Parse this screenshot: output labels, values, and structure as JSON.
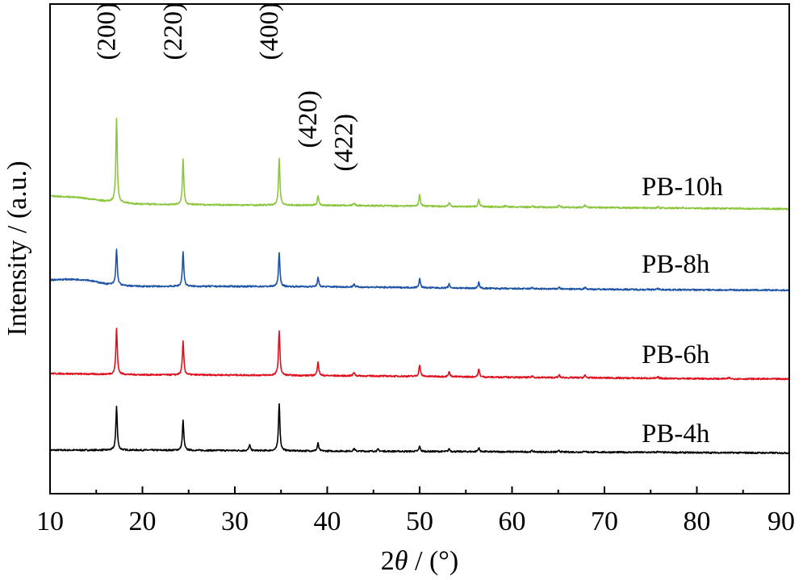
{
  "chart_data": {
    "type": "line",
    "xlabel_prefix": "2",
    "xlabel_var": "θ",
    "xlabel_suffix": " / (°)",
    "ylabel": "Intensity / (a.u.)",
    "xlim": [
      10,
      90
    ],
    "xticks": [
      10,
      20,
      30,
      40,
      50,
      60,
      70,
      80,
      90
    ],
    "y_ticks_shown": false,
    "grid": false,
    "peak_labels": [
      {
        "text": "(200)",
        "x": 17.2
      },
      {
        "text": "(220)",
        "x": 24.4
      },
      {
        "text": "(400)",
        "x": 34.8
      },
      {
        "text": "(420)",
        "x": 39.0
      },
      {
        "text": "(422)",
        "x": 42.9
      }
    ],
    "series": [
      {
        "name": "PB-4h",
        "color": "#000000",
        "baseline": [
          [
            10,
            0.0
          ],
          [
            20,
            0.0
          ],
          [
            30,
            -0.03
          ],
          [
            40,
            -0.07
          ],
          [
            50,
            -0.1
          ],
          [
            60,
            -0.13
          ],
          [
            70,
            -0.16
          ],
          [
            80,
            -0.19
          ],
          [
            90,
            -0.22
          ]
        ],
        "peaks": [
          [
            17.2,
            3.4
          ],
          [
            24.4,
            2.3
          ],
          [
            31.6,
            0.45
          ],
          [
            34.8,
            3.7
          ],
          [
            39.0,
            0.6
          ],
          [
            42.9,
            0.2
          ],
          [
            45.5,
            0.15
          ],
          [
            50.0,
            0.4
          ],
          [
            53.2,
            0.2
          ],
          [
            56.4,
            0.3
          ],
          [
            62.2,
            0.1
          ],
          [
            65.1,
            0.1
          ],
          [
            67.9,
            0.1
          ],
          [
            75.8,
            0.08
          ]
        ]
      },
      {
        "name": "PB-6h",
        "color": "#e0101e",
        "baseline": [
          [
            10,
            0.0
          ],
          [
            20,
            -0.1
          ],
          [
            30,
            -0.12
          ],
          [
            40,
            -0.17
          ],
          [
            50,
            -0.22
          ],
          [
            60,
            -0.3
          ],
          [
            70,
            -0.34
          ],
          [
            80,
            -0.4
          ],
          [
            90,
            -0.43
          ]
        ],
        "peaks": [
          [
            17.2,
            3.6
          ],
          [
            24.4,
            2.6
          ],
          [
            34.8,
            3.5
          ],
          [
            39.0,
            1.1
          ],
          [
            42.9,
            0.3
          ],
          [
            50.0,
            0.9
          ],
          [
            53.2,
            0.4
          ],
          [
            56.4,
            0.6
          ],
          [
            59.3,
            0.1
          ],
          [
            62.2,
            0.12
          ],
          [
            65.1,
            0.2
          ],
          [
            67.9,
            0.2
          ],
          [
            75.8,
            0.1
          ],
          [
            83.5,
            0.08
          ]
        ]
      },
      {
        "name": "PB-8h",
        "color": "#1d53a5",
        "baseline": [
          [
            10,
            0.0
          ],
          [
            12,
            0.05
          ],
          [
            14,
            0.0
          ],
          [
            16,
            -0.3
          ],
          [
            18,
            -0.45
          ],
          [
            20,
            -0.5
          ],
          [
            30,
            -0.5
          ],
          [
            40,
            -0.53
          ],
          [
            50,
            -0.6
          ],
          [
            60,
            -0.68
          ],
          [
            70,
            -0.73
          ],
          [
            80,
            -0.77
          ],
          [
            90,
            -0.8
          ]
        ],
        "peaks": [
          [
            17.2,
            2.8
          ],
          [
            24.4,
            2.7
          ],
          [
            34.8,
            2.6
          ],
          [
            39.0,
            0.7
          ],
          [
            42.9,
            0.25
          ],
          [
            50.0,
            0.7
          ],
          [
            53.2,
            0.3
          ],
          [
            56.4,
            0.45
          ],
          [
            62.2,
            0.12
          ],
          [
            65.1,
            0.15
          ],
          [
            67.9,
            0.18
          ],
          [
            75.8,
            0.1
          ]
        ]
      },
      {
        "name": "PB-10h",
        "color": "#8cc63f",
        "baseline": [
          [
            10,
            0.0
          ],
          [
            13,
            -0.1
          ],
          [
            16,
            -0.4
          ],
          [
            19,
            -0.6
          ],
          [
            22,
            -0.65
          ],
          [
            30,
            -0.7
          ],
          [
            40,
            -0.72
          ],
          [
            50,
            -0.78
          ],
          [
            60,
            -0.85
          ],
          [
            70,
            -0.9
          ],
          [
            80,
            -0.95
          ],
          [
            90,
            -1.0
          ]
        ],
        "peaks": [
          [
            17.2,
            6.5
          ],
          [
            24.4,
            3.5
          ],
          [
            34.8,
            3.6
          ],
          [
            39.0,
            0.75
          ],
          [
            42.9,
            0.2
          ],
          [
            50.0,
            0.9
          ],
          [
            53.2,
            0.3
          ],
          [
            56.4,
            0.55
          ],
          [
            59.3,
            0.1
          ],
          [
            62.2,
            0.1
          ],
          [
            65.1,
            0.2
          ],
          [
            67.9,
            0.2
          ],
          [
            75.8,
            0.1
          ],
          [
            78.5,
            0.08
          ]
        ]
      }
    ]
  }
}
